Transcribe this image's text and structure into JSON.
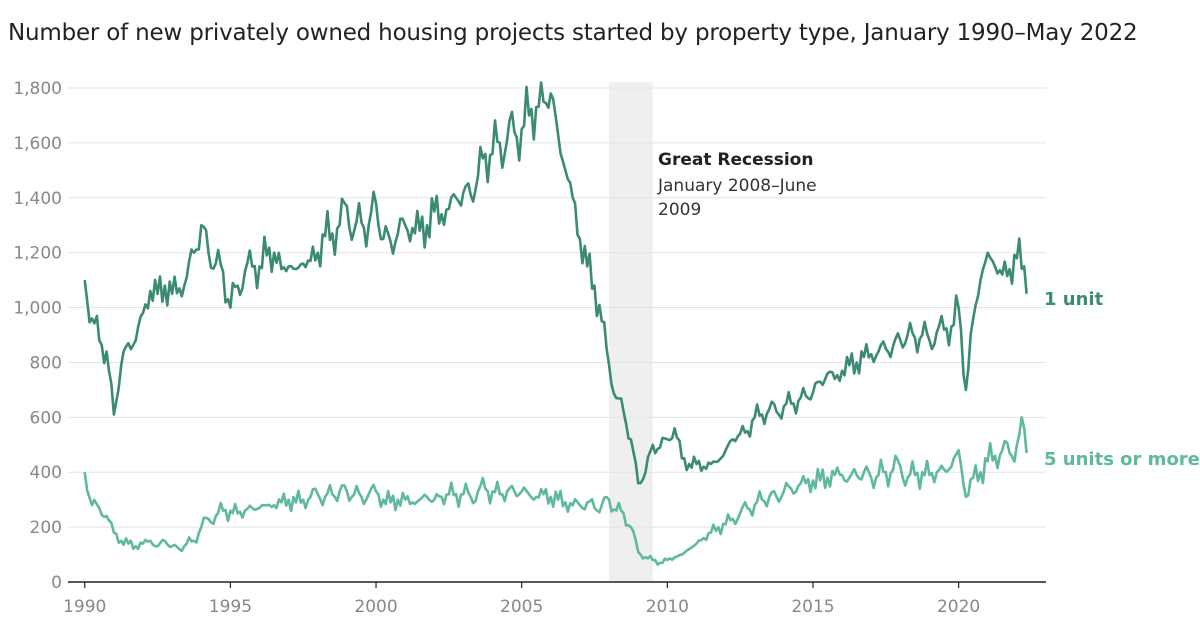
{
  "chart_data": {
    "type": "line",
    "title": "Number of new privately owned housing projects started by property type, January 1990–May 2022",
    "xlabel": "",
    "ylabel": "",
    "x_range": [
      "1990-01",
      "2022-05"
    ],
    "xlim": [
      1989.7,
      2023.0
    ],
    "ylim": [
      0,
      1820
    ],
    "x_ticks": [
      1990,
      1995,
      2000,
      2005,
      2010,
      2015,
      2020
    ],
    "x_tick_labels": [
      "1990",
      "1995",
      "2000",
      "2005",
      "2010",
      "2015",
      "2020"
    ],
    "y_ticks": [
      0,
      200,
      400,
      600,
      800,
      1000,
      1200,
      1400,
      1600,
      1800
    ],
    "y_tick_labels": [
      "0",
      "200",
      "400",
      "600",
      "800",
      "1,000",
      "1,200",
      "1,400",
      "1,600",
      "1,800"
    ],
    "grid": true,
    "legend": "direct labels at right end of each line",
    "annotation": {
      "title": "Great Recession",
      "text_lines": [
        "January 2008–June",
        "2009"
      ],
      "start": "2008-01",
      "end": "2009-06",
      "shade_color": "#efefef"
    },
    "series": [
      {
        "name": "1 unit",
        "color": "#3a8a74",
        "x": [
          "1990-01",
          "1990-04",
          "1990-07",
          "1990-10",
          "1991-01",
          "1991-04",
          "1991-07",
          "1991-10",
          "1992-01",
          "1992-04",
          "1992-07",
          "1992-10",
          "1993-01",
          "1993-04",
          "1993-07",
          "1993-10",
          "1994-01",
          "1994-04",
          "1994-07",
          "1994-10",
          "1995-01",
          "1995-04",
          "1995-07",
          "1995-10",
          "1996-01",
          "1996-04",
          "1996-07",
          "1996-10",
          "1997-01",
          "1997-04",
          "1997-07",
          "1997-10",
          "1998-01",
          "1998-04",
          "1998-07",
          "1998-10",
          "1999-01",
          "1999-04",
          "1999-07",
          "1999-10",
          "2000-01",
          "2000-04",
          "2000-07",
          "2000-10",
          "2001-01",
          "2001-04",
          "2001-07",
          "2001-10",
          "2002-01",
          "2002-04",
          "2002-07",
          "2002-10",
          "2003-01",
          "2003-04",
          "2003-07",
          "2003-10",
          "2004-01",
          "2004-04",
          "2004-07",
          "2004-10",
          "2005-01",
          "2005-04",
          "2005-07",
          "2005-10",
          "2006-01",
          "2006-04",
          "2006-07",
          "2006-10",
          "2007-01",
          "2007-04",
          "2007-07",
          "2007-10",
          "2008-01",
          "2008-04",
          "2008-07",
          "2008-10",
          "2009-01",
          "2009-04",
          "2009-07",
          "2009-10",
          "2010-01",
          "2010-04",
          "2010-07",
          "2010-10",
          "2011-01",
          "2011-04",
          "2011-07",
          "2011-10",
          "2012-01",
          "2012-04",
          "2012-07",
          "2012-10",
          "2013-01",
          "2013-04",
          "2013-07",
          "2013-10",
          "2014-01",
          "2014-04",
          "2014-07",
          "2014-10",
          "2015-01",
          "2015-04",
          "2015-07",
          "2015-10",
          "2016-01",
          "2016-04",
          "2016-07",
          "2016-10",
          "2017-01",
          "2017-04",
          "2017-07",
          "2017-10",
          "2018-01",
          "2018-04",
          "2018-07",
          "2018-10",
          "2019-01",
          "2019-04",
          "2019-07",
          "2019-10",
          "2020-01",
          "2020-04",
          "2020-07",
          "2020-10",
          "2021-01",
          "2021-04",
          "2021-07",
          "2021-10",
          "2022-01",
          "2022-04",
          "2022-05"
        ],
        "values": [
          1100,
          960,
          880,
          840,
          610,
          790,
          870,
          880,
          980,
          1060,
          1050,
          1080,
          1050,
          1070,
          1110,
          1200,
          1300,
          1200,
          1160,
          1130,
          1000,
          1080,
          1130,
          1150,
          1150,
          1190,
          1200,
          1140,
          1150,
          1140,
          1160,
          1170,
          1200,
          1260,
          1270,
          1300,
          1370,
          1280,
          1310,
          1300,
          1380,
          1250,
          1240,
          1270,
          1300,
          1290,
          1280,
          1300,
          1350,
          1340,
          1360,
          1400,
          1420,
          1410,
          1480,
          1560,
          1560,
          1600,
          1610,
          1640,
          1650,
          1700,
          1730,
          1750,
          1780,
          1630,
          1500,
          1400,
          1250,
          1150,
          1080,
          950,
          790,
          670,
          620,
          520,
          360,
          400,
          500,
          490,
          520,
          560,
          450,
          430,
          430,
          420,
          430,
          440,
          480,
          520,
          540,
          550,
          600,
          610,
          630,
          620,
          640,
          650,
          660,
          680,
          690,
          730,
          760,
          740,
          770,
          790,
          800,
          820,
          830,
          840,
          850,
          860,
          880,
          900,
          890,
          900,
          880,
          910,
          920,
          930,
          1000,
          700,
          960,
          1100,
          1200,
          1150,
          1120,
          1140,
          1180,
          1150,
          1050
        ]
      },
      {
        "name": "5 units or more",
        "color": "#5fb8a0",
        "x": [
          "1990-01",
          "1990-04",
          "1990-07",
          "1990-10",
          "1991-01",
          "1991-04",
          "1991-07",
          "1991-10",
          "1992-01",
          "1992-04",
          "1992-07",
          "1992-10",
          "1993-01",
          "1993-04",
          "1993-07",
          "1993-10",
          "1994-01",
          "1994-04",
          "1994-07",
          "1994-10",
          "1995-01",
          "1995-04",
          "1995-07",
          "1995-10",
          "1996-01",
          "1996-04",
          "1996-07",
          "1996-10",
          "1997-01",
          "1997-04",
          "1997-07",
          "1997-10",
          "1998-01",
          "1998-04",
          "1998-07",
          "1998-10",
          "1999-01",
          "1999-04",
          "1999-07",
          "1999-10",
          "2000-01",
          "2000-04",
          "2000-07",
          "2000-10",
          "2001-01",
          "2001-04",
          "2001-07",
          "2001-10",
          "2002-01",
          "2002-04",
          "2002-07",
          "2002-10",
          "2003-01",
          "2003-04",
          "2003-07",
          "2003-10",
          "2004-01",
          "2004-04",
          "2004-07",
          "2004-10",
          "2005-01",
          "2005-04",
          "2005-07",
          "2005-10",
          "2006-01",
          "2006-04",
          "2006-07",
          "2006-10",
          "2007-01",
          "2007-04",
          "2007-07",
          "2007-10",
          "2008-01",
          "2008-04",
          "2008-07",
          "2008-10",
          "2009-01",
          "2009-04",
          "2009-07",
          "2009-10",
          "2010-01",
          "2010-04",
          "2010-07",
          "2010-10",
          "2011-01",
          "2011-04",
          "2011-07",
          "2011-10",
          "2012-01",
          "2012-04",
          "2012-07",
          "2012-10",
          "2013-01",
          "2013-04",
          "2013-07",
          "2013-10",
          "2014-01",
          "2014-04",
          "2014-07",
          "2014-10",
          "2015-01",
          "2015-04",
          "2015-07",
          "2015-10",
          "2016-01",
          "2016-04",
          "2016-07",
          "2016-10",
          "2017-01",
          "2017-04",
          "2017-07",
          "2017-10",
          "2018-01",
          "2018-04",
          "2018-07",
          "2018-10",
          "2019-01",
          "2019-04",
          "2019-07",
          "2019-10",
          "2020-01",
          "2020-04",
          "2020-07",
          "2020-10",
          "2021-01",
          "2021-04",
          "2021-07",
          "2021-10",
          "2022-01",
          "2022-04",
          "2022-05"
        ],
        "values": [
          400,
          280,
          270,
          240,
          180,
          150,
          140,
          130,
          140,
          150,
          130,
          150,
          130,
          120,
          140,
          150,
          200,
          230,
          240,
          260,
          260,
          250,
          260,
          270,
          270,
          280,
          280,
          290,
          300,
          290,
          300,
          310,
          320,
          310,
          320,
          330,
          330,
          320,
          310,
          320,
          330,
          300,
          290,
          300,
          300,
          290,
          300,
          310,
          300,
          310,
          320,
          320,
          320,
          310,
          330,
          340,
          330,
          320,
          330,
          330,
          330,
          320,
          310,
          320,
          310,
          300,
          290,
          280,
          280,
          290,
          270,
          280,
          300,
          260,
          250,
          200,
          110,
          90,
          80,
          70,
          80,
          90,
          100,
          120,
          140,
          160,
          180,
          200,
          210,
          230,
          250,
          270,
          280,
          300,
          310,
          310,
          330,
          340,
          350,
          360,
          370,
          370,
          380,
          390,
          390,
          380,
          390,
          400,
          380,
          390,
          400,
          410,
          420,
          380,
          390,
          400,
          390,
          400,
          410,
          420,
          480,
          310,
          380,
          400,
          440,
          460,
          480,
          470,
          500,
          560,
          470
        ]
      }
    ]
  }
}
